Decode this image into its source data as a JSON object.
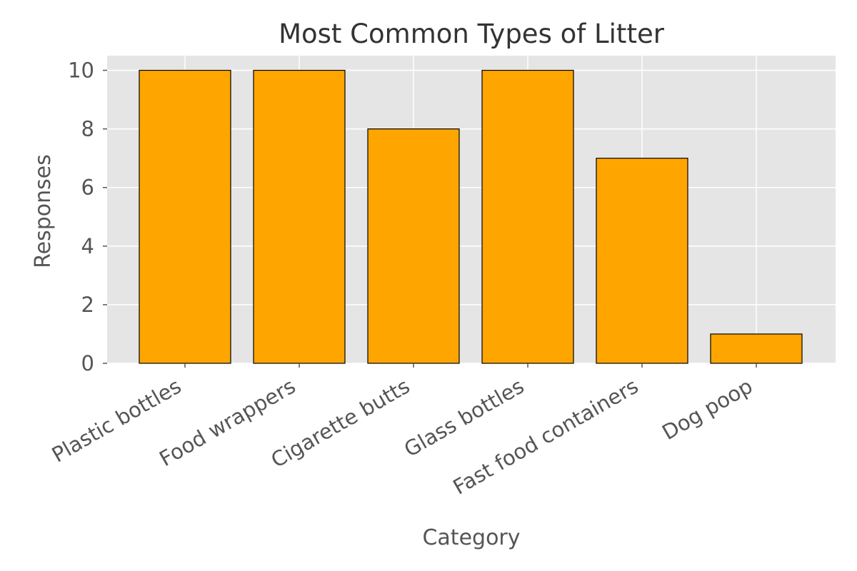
{
  "chart_data": {
    "type": "bar",
    "title": "Most Common Types of Litter",
    "xlabel": "Category",
    "ylabel": "Responses",
    "categories": [
      "Plastic bottles",
      "Food wrappers",
      "Cigarette butts",
      "Glass bottles",
      "Fast food containers",
      "Dog poop"
    ],
    "values": [
      10,
      10,
      8,
      10,
      7,
      1
    ],
    "ylim": [
      0,
      10.5
    ],
    "yticks": [
      0,
      2,
      4,
      6,
      8,
      10
    ],
    "grid": true,
    "colors": {
      "bar": "#FFA500",
      "bar_edge": "#000000",
      "plot_background": "#E5E5E5",
      "grid": "#FFFFFF"
    }
  }
}
